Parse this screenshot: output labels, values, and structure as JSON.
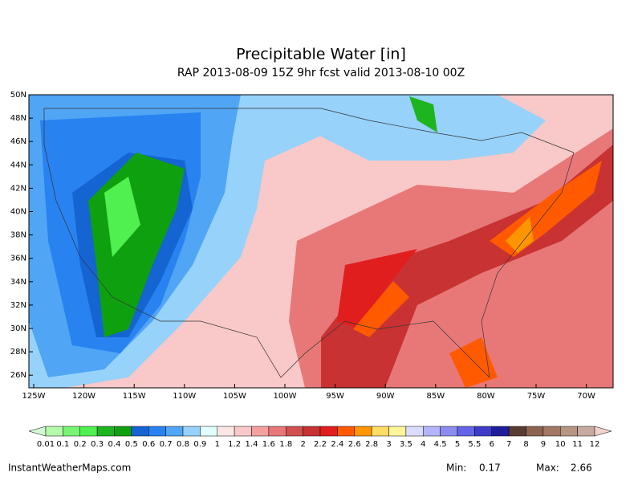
{
  "header": {
    "title": "Precipitable Water [in]",
    "subtitle": "RAP 2013-08-09 15Z 9hr fcst valid 2013-08-10 00Z"
  },
  "map": {
    "lat_labels": [
      "50N",
      "48N",
      "46N",
      "44N",
      "42N",
      "40N",
      "38N",
      "36N",
      "34N",
      "32N",
      "30N",
      "28N",
      "26N"
    ],
    "lon_labels": [
      "125W",
      "120W",
      "115W",
      "110W",
      "105W",
      "100W",
      "95W",
      "90W",
      "85W",
      "80W",
      "75W",
      "70W"
    ]
  },
  "colorbar": {
    "labels": [
      0.01,
      0.1,
      0.2,
      0.3,
      0.4,
      0.5,
      0.6,
      0.7,
      0.8,
      0.9,
      1,
      1.2,
      1.4,
      1.6,
      1.8,
      2,
      2.2,
      2.4,
      2.6,
      2.8,
      3,
      3.5,
      4,
      4.5,
      5,
      5.5,
      6,
      7,
      8,
      9,
      10,
      11,
      12
    ],
    "colors": [
      "#d2fad2",
      "#b4faaa",
      "#78f573",
      "#50f050",
      "#1eb41e",
      "#0fa00f",
      "#1464d2",
      "#2882f0",
      "#50a5f5",
      "#96d2fa",
      "#e1ffff",
      "#fde6e6",
      "#f9c8c8",
      "#f5a0a0",
      "#e87878",
      "#d25050",
      "#c83232",
      "#e11e1e",
      "#ff5a00",
      "#ff9600",
      "#ffdc64",
      "#fff59b",
      "#dcdcff",
      "#b4b4fa",
      "#8c8cf0",
      "#6464e6",
      "#3c3cc8",
      "#1e1e9b",
      "#5a3c32",
      "#8c6450",
      "#a07864",
      "#b49682",
      "#c8aaa0",
      "#f0d2c8"
    ]
  },
  "footer": {
    "site": "InstantWeatherMaps.com",
    "min_label": "Min:",
    "min_value": 0.17,
    "max_label": "Max:",
    "max_value": 2.66
  }
}
